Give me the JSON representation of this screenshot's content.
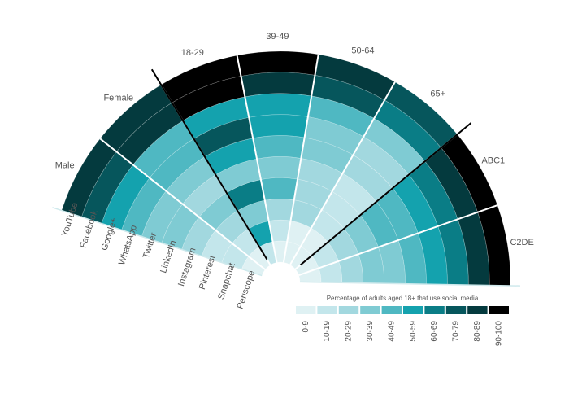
{
  "chart_data": {
    "type": "radial-heatmap",
    "categories": [
      "YouTube",
      "Facebook",
      "Google+",
      "WhatsApp",
      "Twitter",
      "LinkedIn",
      "Instagram",
      "Pinterest",
      "Snapchat",
      "Periscope"
    ],
    "series": [
      {
        "name": "Male",
        "values": [
          85,
          75,
          55,
          45,
          35,
          30,
          25,
          15,
          15,
          5
        ]
      },
      {
        "name": "Female",
        "values": [
          85,
          85,
          45,
          45,
          35,
          25,
          35,
          25,
          15,
          5
        ]
      },
      {
        "name": "18-29",
        "values": [
          95,
          90,
          55,
          75,
          55,
          35,
          65,
          35,
          55,
          15
        ]
      },
      {
        "name": "39-49",
        "values": [
          95,
          85,
          55,
          55,
          45,
          35,
          45,
          25,
          15,
          5
        ]
      },
      {
        "name": "50-64",
        "values": [
          85,
          75,
          45,
          35,
          35,
          25,
          25,
          25,
          5,
          5
        ]
      },
      {
        "name": "65+",
        "values": [
          75,
          65,
          35,
          25,
          25,
          15,
          15,
          15,
          5,
          5
        ]
      },
      {
        "name": "ABC1",
        "values": [
          95,
          85,
          65,
          55,
          45,
          45,
          35,
          25,
          15,
          5
        ]
      },
      {
        "name": "C2DE",
        "values": [
          95,
          85,
          65,
          55,
          45,
          35,
          35,
          25,
          15,
          5
        ]
      }
    ],
    "legend": {
      "title": "Percentage of adults aged 18+ that use social media",
      "bins": [
        0,
        10,
        20,
        30,
        40,
        50,
        60,
        70,
        80,
        90,
        100
      ],
      "labels": [
        "0-9",
        "10-19",
        "20-29",
        "30-39",
        "40-49",
        "50-59",
        "60-69",
        "70-79",
        "80-89",
        "90-100"
      ],
      "colors": [
        "#dff1f3",
        "#c3e6eb",
        "#a2d8df",
        "#7fcbd3",
        "#4fb8c2",
        "#14a2ae",
        "#0a7d86",
        "#06565c",
        "#043a3e",
        "#000000"
      ]
    }
  }
}
